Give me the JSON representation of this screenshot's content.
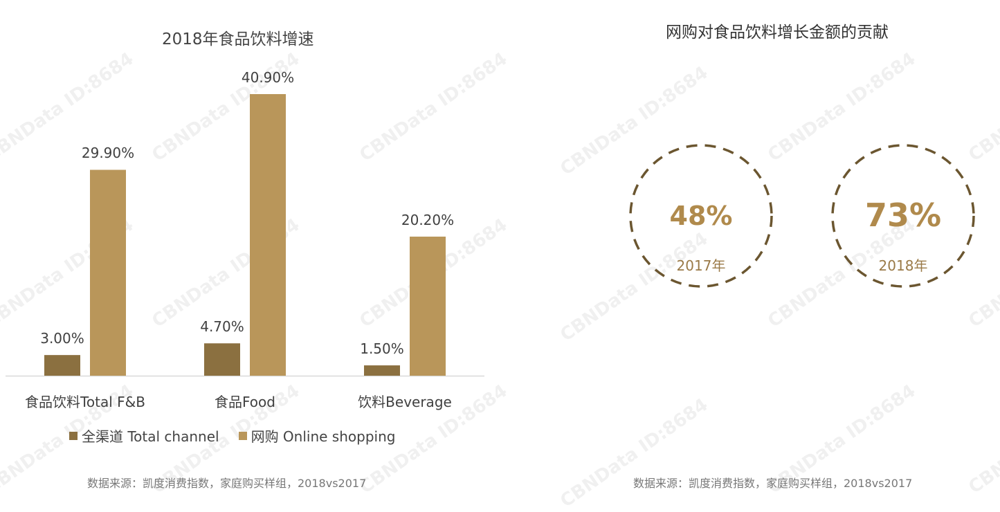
{
  "watermark": "CBNData ID:8684",
  "chart_data": [
    {
      "type": "bar",
      "title": "2018年食品饮料增速",
      "categories": [
        "食品饮料Total F&B",
        "食品Food",
        "饮料Beverage"
      ],
      "series": [
        {
          "name": "全渠道 Total channel",
          "values": [
            3.0,
            4.7,
            1.5
          ],
          "labels": [
            "3.00%",
            "4.70%",
            "1.50%"
          ],
          "color": "#8b7040"
        },
        {
          "name": "网购 Online shopping",
          "values": [
            29.9,
            40.9,
            20.2
          ],
          "labels": [
            "29.90%",
            "40.90%",
            "20.20%"
          ],
          "color": "#b9965a"
        }
      ],
      "ylim": [
        0,
        40.9
      ],
      "grid": false,
      "legend": "bottom",
      "source": "数据来源：凯度消费指数，家庭购买样组，2018vs2017"
    },
    {
      "type": "table",
      "title": "网购对食品饮料增长金额的贡献",
      "items": [
        {
          "value": "48%",
          "year": "2017年"
        },
        {
          "value": "73%",
          "year": "2018年"
        }
      ],
      "color": "#b08a4c",
      "circle_color": "#6b5630",
      "source": "数据来源：凯度消费指数，家庭购买样组，2018vs2017"
    }
  ]
}
